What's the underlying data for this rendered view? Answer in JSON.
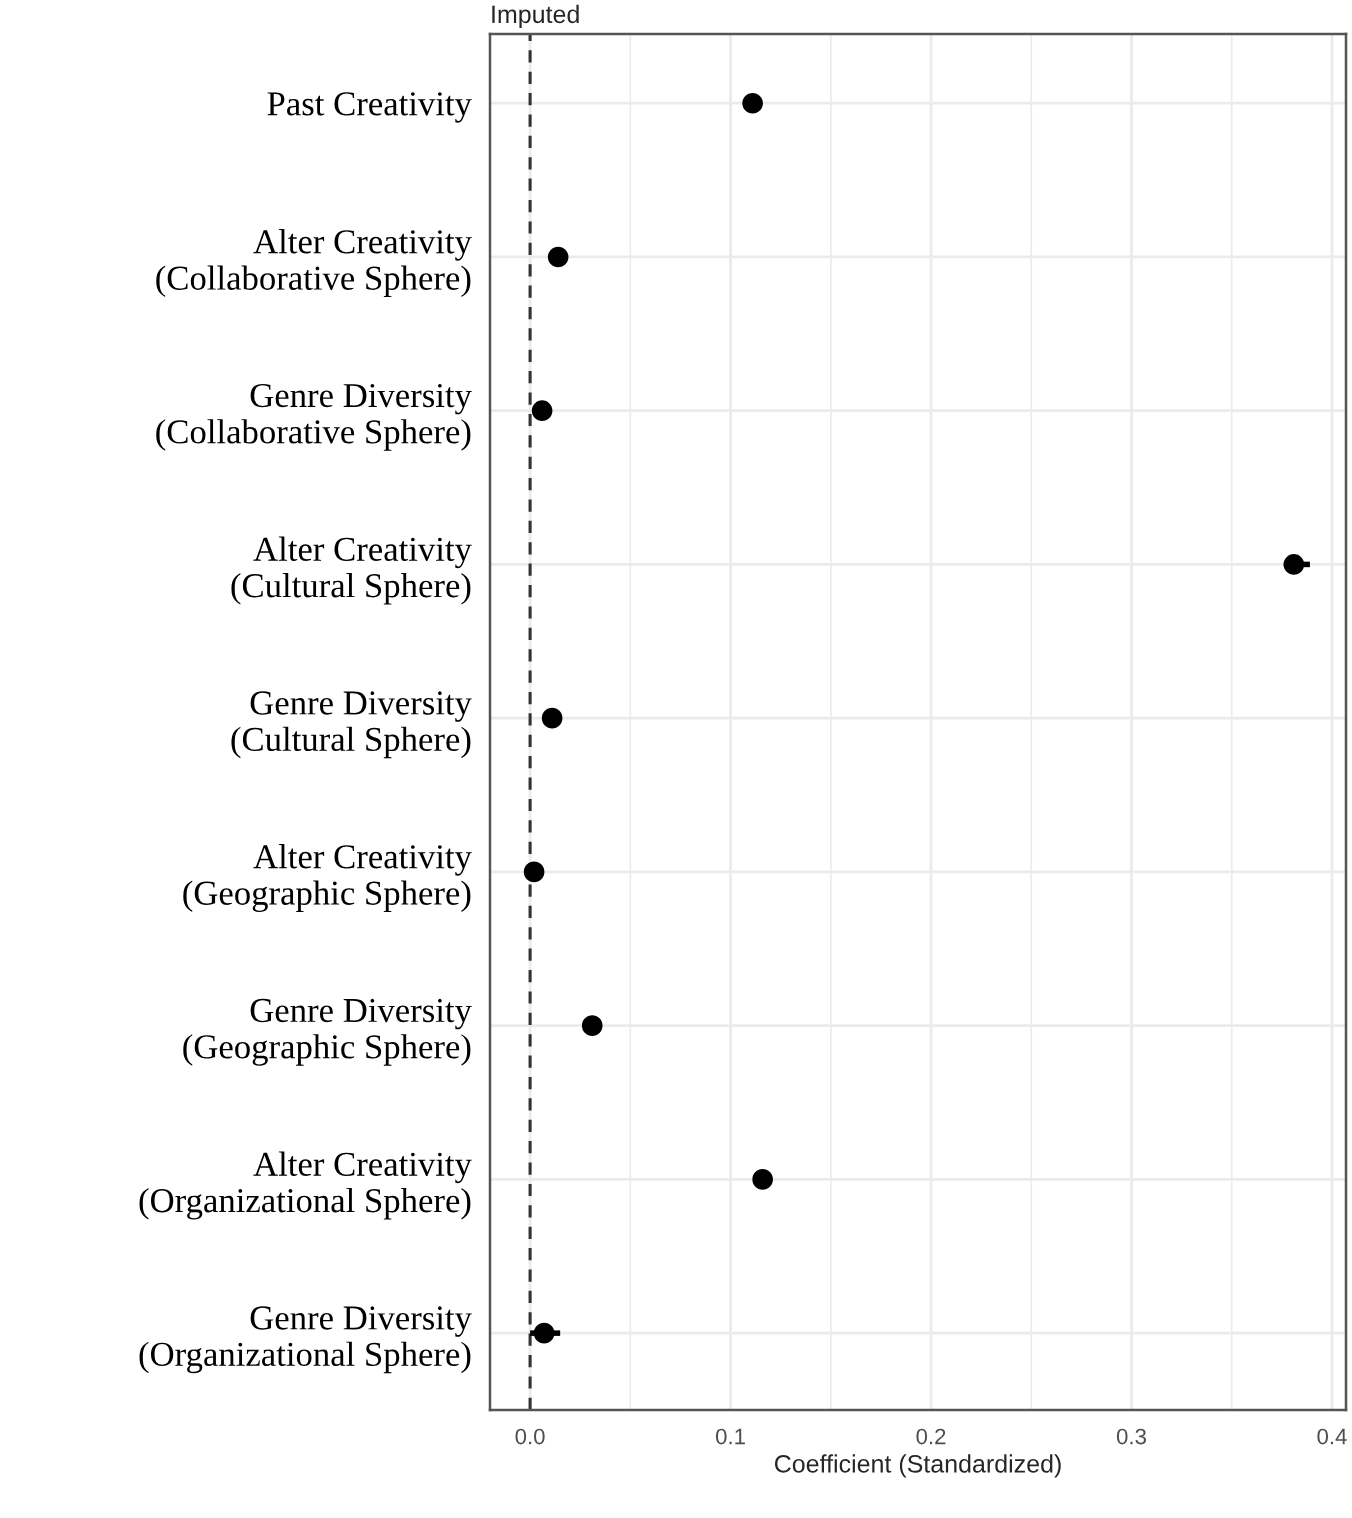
{
  "chart_data": {
    "type": "scatter",
    "orientation": "horizontal",
    "title": "Imputed",
    "xlabel": "Coefficient (Standardized)",
    "categories": [
      "Past Creativity",
      "Alter Creativity\n(Collaborative Sphere)",
      "Genre Diversity\n(Collaborative Sphere)",
      "Alter Creativity\n(Cultural Sphere)",
      "Genre Diversity\n(Cultural Sphere)",
      "Alter Creativity\n(Geographic Sphere)",
      "Genre Diversity\n(Geographic Sphere)",
      "Alter Creativity\n(Organizational Sphere)",
      "Genre Diversity\n(Organizational Sphere)"
    ],
    "values": [
      0.111,
      0.014,
      0.006,
      0.381,
      0.011,
      0.002,
      0.031,
      0.116,
      0.007
    ],
    "errors": [
      null,
      null,
      null,
      [
        0.376,
        0.389
      ],
      null,
      null,
      null,
      null,
      [
        0.0,
        0.015
      ]
    ],
    "color": "#000000",
    "marker": "circle",
    "xlim": [
      -0.02,
      0.407
    ],
    "xticks": [
      {
        "value": 0,
        "label": "0.0"
      },
      0.1,
      0.2,
      0.3,
      0.4
    ],
    "ref_lines": [
      {
        "axis": "x",
        "value": 0,
        "line_style": "dashed",
        "color": "#333333"
      }
    ],
    "grid": true
  }
}
